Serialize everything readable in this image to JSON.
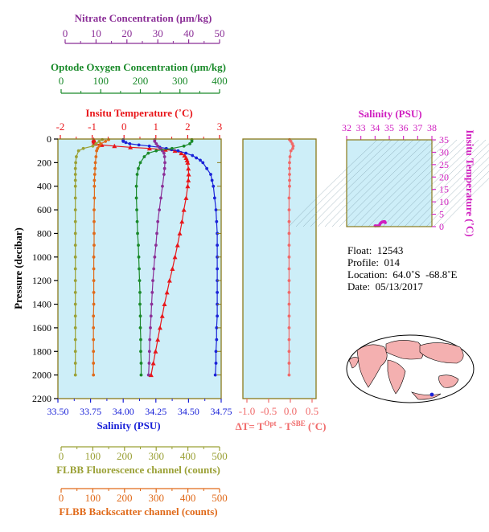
{
  "colors": {
    "nitrate": "#8b2f97",
    "oxygen": "#1a8a2a",
    "temperature": "#e8161a",
    "salinity": "#1a22d8",
    "fluorescence": "#9aa035",
    "backscatter": "#e06a1a",
    "delta": "#f06a6a",
    "ts_axis": "#d020c0",
    "plot_bg": "#cdeef8",
    "frame": "#8a7a1a"
  },
  "axes": {
    "nitrate": {
      "label": "Nitrate Concentration (µm/kg)",
      "ticks": [
        "0",
        "10",
        "20",
        "30",
        "40",
        "50"
      ]
    },
    "oxygen": {
      "label": "Optode Oxygen Concentration (µm/kg)",
      "ticks": [
        "0",
        "100",
        "200",
        "300",
        "400"
      ]
    },
    "temperature": {
      "label": "Insitu Temperature (˚C)",
      "ticks": [
        "-2",
        "-1",
        "0",
        "1",
        "2",
        "3"
      ]
    },
    "salinity": {
      "label": "Salinity (PSU)",
      "ticks": [
        "33.50",
        "33.75",
        "34.00",
        "34.25",
        "34.50",
        "34.75"
      ]
    },
    "pressure": {
      "label": "Pressure (decibar)",
      "ticks": [
        "0",
        "200",
        "400",
        "600",
        "800",
        "1000",
        "1200",
        "1400",
        "1600",
        "1800",
        "2000",
        "2200"
      ]
    },
    "delta": {
      "label": "ΔT= T^Opt - T^SBE (˚C)",
      "ticks": [
        "-1.0",
        "-0.5",
        "0.0",
        "0.5"
      ]
    },
    "fluorescence": {
      "label": "FLBB Fluorescence channel (counts)",
      "ticks": [
        "0",
        "100",
        "200",
        "300",
        "400",
        "500"
      ]
    },
    "backscatter": {
      "label": "FLBB Backscatter channel (counts)",
      "ticks": [
        "0",
        "100",
        "200",
        "300",
        "400",
        "500"
      ]
    },
    "ts_salinity": {
      "label": "Salinity (PSU)",
      "ticks": [
        "32",
        "33",
        "34",
        "35",
        "36",
        "37",
        "38"
      ]
    },
    "ts_temperature": {
      "label": "Insitu Temperature (˚C)",
      "ticks": [
        "0",
        "5",
        "10",
        "15",
        "20",
        "25",
        "30",
        "35"
      ]
    }
  },
  "info": {
    "float": "Float:  12543",
    "profile": "Profile:  014",
    "location": "Location:  64.0˚S  -68.8˚E",
    "date": "Date:  05/13/2017"
  },
  "chart_data": [
    {
      "type": "line",
      "title": "",
      "ylabel": "Pressure (decibar)",
      "ylim": [
        2200,
        0
      ],
      "series": [
        {
          "name": "Insitu Temperature (˚C)",
          "xlim": [
            -2,
            3
          ],
          "pressure": [
            5,
            10,
            20,
            30,
            40,
            50,
            60,
            70,
            80,
            90,
            100,
            120,
            140,
            160,
            180,
            200,
            250,
            300,
            350,
            400,
            500,
            600,
            700,
            800,
            900,
            1000,
            1100,
            1200,
            1300,
            1400,
            1500,
            1600,
            1700,
            1800,
            1900,
            2000
          ],
          "values": [
            -0.95,
            -0.95,
            -0.95,
            -0.93,
            -0.9,
            -0.7,
            -0.3,
            0.2,
            0.8,
            1.3,
            1.6,
            1.8,
            1.9,
            1.95,
            1.98,
            2.0,
            2.02,
            2.03,
            2.02,
            2.0,
            1.95,
            1.88,
            1.82,
            1.75,
            1.68,
            1.6,
            1.52,
            1.43,
            1.35,
            1.27,
            1.2,
            1.13,
            1.06,
            0.99,
            0.92,
            0.85
          ]
        },
        {
          "name": "Salinity (PSU)",
          "xlim": [
            33.5,
            34.75
          ],
          "pressure": [
            5,
            10,
            20,
            30,
            40,
            50,
            60,
            70,
            80,
            90,
            100,
            120,
            140,
            160,
            180,
            200,
            250,
            300,
            350,
            400,
            500,
            600,
            700,
            800,
            900,
            1000,
            1100,
            1200,
            1300,
            1400,
            1500,
            1600,
            1700,
            1800,
            1900,
            2000
          ],
          "values": [
            34.0,
            34.0,
            34.0,
            34.02,
            34.05,
            34.12,
            34.2,
            34.28,
            34.33,
            34.37,
            34.42,
            34.48,
            34.53,
            34.56,
            34.59,
            34.61,
            34.64,
            34.67,
            34.68,
            34.69,
            34.7,
            34.71,
            34.715,
            34.72,
            34.72,
            34.72,
            34.72,
            34.72,
            34.72,
            34.72,
            34.72,
            34.715,
            34.715,
            34.71,
            34.71,
            34.705
          ]
        },
        {
          "name": "Nitrate Concentration (µm/kg)",
          "xlim": [
            0,
            50
          ],
          "pressure": [
            5,
            20,
            40,
            60,
            80,
            100,
            120,
            150,
            200,
            250,
            300,
            400,
            500,
            600,
            700,
            800,
            900,
            1000,
            1100,
            1200,
            1300,
            1400,
            1500,
            1600,
            1700,
            1800,
            1900,
            2000
          ],
          "values": [
            29,
            29,
            29.5,
            30,
            31,
            31.5,
            32,
            32.2,
            32.3,
            32.2,
            32.0,
            31.5,
            31.0,
            30.5,
            30.0,
            29.7,
            29.4,
            29.0,
            28.7,
            28.4,
            28.2,
            28.0,
            27.8,
            27.6,
            27.4,
            27.3,
            27.2,
            27.0
          ]
        },
        {
          "name": "Optode Oxygen Concentration (µm/kg)",
          "xlim": [
            0,
            400
          ],
          "pressure": [
            5,
            20,
            40,
            60,
            80,
            100,
            120,
            150,
            200,
            250,
            300,
            400,
            500,
            600,
            700,
            800,
            900,
            1000,
            1100,
            1200,
            1300,
            1400,
            1500,
            1600,
            1700,
            1800,
            1900,
            2000
          ],
          "values": [
            330,
            330,
            325,
            310,
            280,
            240,
            220,
            210,
            200,
            195,
            192,
            190,
            190,
            191,
            192,
            193,
            195,
            196,
            197,
            198,
            199,
            199,
            200,
            200,
            201,
            201,
            202,
            202
          ]
        },
        {
          "name": "FLBB Fluorescence channel (counts)",
          "xlim": [
            0,
            500
          ],
          "pressure": [
            5,
            20,
            40,
            60,
            80,
            100,
            150,
            200,
            250,
            300,
            350,
            400,
            500,
            600,
            700,
            800,
            900,
            1000,
            1100,
            1200,
            1300,
            1400,
            1500,
            1600,
            1700,
            1800,
            1900,
            2000
          ],
          "values": [
            130,
            120,
            110,
            100,
            70,
            55,
            48,
            46,
            45,
            45,
            45,
            45,
            45,
            45,
            45,
            45,
            45,
            45,
            45,
            45,
            45,
            45,
            45,
            45,
            45,
            45,
            45,
            45
          ]
        },
        {
          "name": "FLBB Backscatter channel (counts)",
          "xlim": [
            0,
            500
          ],
          "pressure": [
            5,
            20,
            40,
            60,
            80,
            100,
            150,
            200,
            250,
            300,
            350,
            400,
            500,
            600,
            700,
            800,
            900,
            1000,
            1100,
            1200,
            1300,
            1400,
            1500,
            1600,
            1700,
            1800,
            1900,
            2000
          ],
          "values": [
            150,
            140,
            125,
            120,
            115,
            112,
            110,
            108,
            107,
            106,
            105,
            105,
            105,
            104,
            104,
            104,
            104,
            103,
            103,
            103,
            103,
            103,
            102,
            102,
            102,
            102,
            102,
            102
          ]
        }
      ]
    },
    {
      "type": "line",
      "title": "",
      "xlabel": "ΔT= T^Opt - T^SBE (˚C)",
      "xlim": [
        -1.0,
        0.6
      ],
      "ylim": [
        2200,
        0
      ],
      "series": [
        {
          "name": "ΔT",
          "pressure": [
            5,
            20,
            40,
            60,
            80,
            100,
            150,
            200,
            250,
            300,
            350,
            400,
            500,
            600,
            700,
            800,
            900,
            1000,
            1100,
            1200,
            1300,
            1400,
            1500,
            1600,
            1700,
            1800,
            1900,
            2000
          ],
          "values": [
            0.02,
            0.05,
            0.08,
            0.1,
            0.09,
            0.05,
            0.03,
            0.02,
            0.02,
            0.02,
            0.02,
            0.02,
            0.01,
            0.01,
            0.01,
            0.01,
            0.01,
            0.01,
            0.01,
            0.01,
            0.01,
            0.01,
            0.01,
            0.01,
            0.01,
            0.01,
            0.01,
            0.01
          ]
        }
      ]
    },
    {
      "type": "scatter",
      "title": "",
      "xlabel": "Salinity (PSU)",
      "ylabel": "Insitu Temperature (˚C)",
      "xlim": [
        32,
        38
      ],
      "ylim": [
        0,
        35
      ],
      "series": [
        {
          "name": "T-S",
          "x": [
            34.0,
            34.02,
            34.05,
            34.12,
            34.2,
            34.28,
            34.33,
            34.37,
            34.42,
            34.48,
            34.53,
            34.56,
            34.59,
            34.61,
            34.64,
            34.67,
            34.7,
            34.72
          ],
          "y": [
            -0.95,
            -0.93,
            -0.9,
            -0.7,
            -0.3,
            0.2,
            0.8,
            1.3,
            1.6,
            1.8,
            1.9,
            1.95,
            1.98,
            2.0,
            2.02,
            2.03,
            1.9,
            1.6
          ]
        }
      ]
    }
  ]
}
